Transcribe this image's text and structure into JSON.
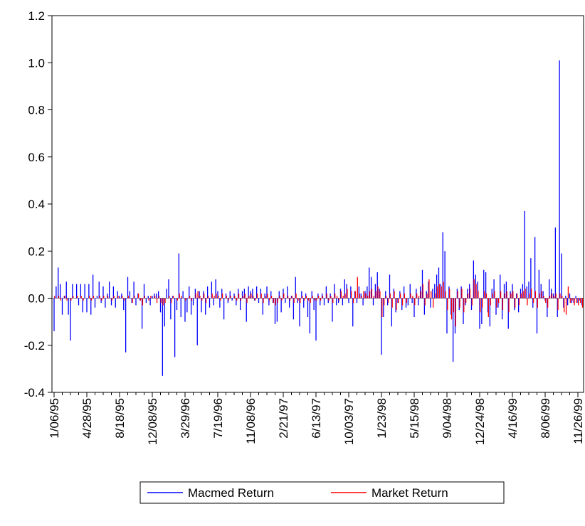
{
  "chart_data": {
    "type": "spike",
    "categories": [
      "1/06/95",
      null,
      null,
      null,
      null,
      null,
      null,
      null,
      null,
      null,
      null,
      null,
      null,
      null,
      null,
      null,
      "4/28/95",
      null,
      null,
      null,
      null,
      null,
      null,
      null,
      null,
      null,
      null,
      null,
      null,
      null,
      null,
      null,
      "8/18/95",
      null,
      null,
      null,
      null,
      null,
      null,
      null,
      null,
      null,
      null,
      null,
      null,
      null,
      null,
      null,
      "12/08/95",
      null,
      null,
      null,
      null,
      null,
      null,
      null,
      null,
      null,
      null,
      null,
      null,
      null,
      null,
      null,
      "3/29/96",
      null,
      null,
      null,
      null,
      null,
      null,
      null,
      null,
      null,
      null,
      null,
      null,
      null,
      null,
      null,
      "7/19/96",
      null,
      null,
      null,
      null,
      null,
      null,
      null,
      null,
      null,
      null,
      null,
      null,
      null,
      null,
      null,
      "11/08/96",
      null,
      null,
      null,
      null,
      null,
      null,
      null,
      null,
      null,
      null,
      null,
      null,
      null,
      null,
      null,
      "2/21/97",
      null,
      null,
      null,
      null,
      null,
      null,
      null,
      null,
      null,
      null,
      null,
      null,
      null,
      null,
      null,
      "6/13/97",
      null,
      null,
      null,
      null,
      null,
      null,
      null,
      null,
      null,
      null,
      null,
      null,
      null,
      null,
      null,
      "10/03/97",
      null,
      null,
      null,
      null,
      null,
      null,
      null,
      null,
      null,
      null,
      null,
      null,
      null,
      null,
      null,
      "1/23/98",
      null,
      null,
      null,
      null,
      null,
      null,
      null,
      null,
      null,
      null,
      null,
      null,
      null,
      null,
      null,
      "5/15/98",
      null,
      null,
      null,
      null,
      null,
      null,
      null,
      null,
      null,
      null,
      null,
      null,
      null,
      null,
      null,
      "9/04/98",
      null,
      null,
      null,
      null,
      null,
      null,
      null,
      null,
      null,
      null,
      null,
      null,
      null,
      null,
      null,
      "12/24/98",
      null,
      null,
      null,
      null,
      null,
      null,
      null,
      null,
      null,
      null,
      null,
      null,
      null,
      null,
      null,
      "4/16/99",
      null,
      null,
      null,
      null,
      null,
      null,
      null,
      null,
      null,
      null,
      null,
      null,
      null,
      null,
      null,
      "8/06/99",
      null,
      null,
      null,
      null,
      null,
      null,
      null,
      null,
      null,
      null,
      null,
      null,
      null,
      null,
      null,
      "11/26/99",
      null,
      null
    ],
    "series": [
      {
        "name": "Macmed Return",
        "color": "#0000ff",
        "values": [
          -0.14,
          0.05,
          0.13,
          0.06,
          -0.07,
          0.01,
          0.07,
          -0.07,
          -0.18,
          0.06,
          0.0,
          0.06,
          -0.03,
          0.06,
          -0.06,
          0.06,
          -0.06,
          0.06,
          -0.07,
          0.1,
          -0.04,
          0.01,
          0.07,
          -0.02,
          0.05,
          -0.04,
          0.02,
          0.07,
          -0.03,
          0.05,
          -0.04,
          0.03,
          0.01,
          0.02,
          -0.05,
          -0.23,
          0.09,
          0.03,
          -0.02,
          0.07,
          -0.03,
          0.02,
          -0.01,
          -0.13,
          0.06,
          -0.02,
          0.01,
          -0.03,
          0.01,
          0.02,
          0.02,
          0.03,
          -0.06,
          -0.33,
          -0.12,
          0.04,
          0.08,
          -0.09,
          0.01,
          -0.25,
          -0.05,
          0.19,
          -0.08,
          0.03,
          -0.1,
          -0.06,
          0.05,
          -0.07,
          -0.03,
          0.04,
          -0.2,
          0.03,
          -0.06,
          0.03,
          -0.07,
          0.05,
          -0.04,
          0.07,
          -0.03,
          0.08,
          0.03,
          -0.04,
          0.04,
          -0.09,
          0.02,
          -0.02,
          0.03,
          -0.01,
          0.02,
          -0.03,
          0.04,
          -0.05,
          0.03,
          0.04,
          -0.1,
          0.05,
          0.03,
          0.04,
          -0.01,
          0.05,
          -0.02,
          0.04,
          -0.07,
          0.02,
          0.05,
          -0.03,
          0.03,
          -0.02,
          -0.11,
          -0.1,
          0.03,
          -0.06,
          0.04,
          -0.02,
          0.05,
          -0.04,
          0.01,
          -0.09,
          0.09,
          -0.02,
          -0.12,
          0.03,
          -0.04,
          0.02,
          -0.08,
          -0.15,
          0.03,
          -0.05,
          -0.18,
          0.02,
          -0.03,
          0.02,
          -0.03,
          0.05,
          -0.02,
          0.02,
          -0.1,
          0.06,
          -0.03,
          -0.02,
          0.04,
          -0.03,
          0.08,
          0.06,
          -0.02,
          0.05,
          -0.12,
          0.03,
          -0.02,
          0.05,
          0.02,
          -0.03,
          0.03,
          0.05,
          0.13,
          0.09,
          -0.03,
          0.06,
          0.11,
          0.04,
          -0.24,
          -0.08,
          0.03,
          -0.03,
          0.1,
          -0.12,
          0.04,
          -0.06,
          -0.02,
          0.03,
          -0.05,
          0.05,
          -0.04,
          -0.03,
          0.06,
          -0.02,
          -0.08,
          0.04,
          -0.03,
          0.05,
          0.12,
          -0.07,
          0.03,
          0.07,
          -0.04,
          0.04,
          0.06,
          0.1,
          0.13,
          0.06,
          0.28,
          0.2,
          -0.15,
          0.05,
          -0.07,
          -0.27,
          -0.15,
          0.04,
          -0.05,
          0.05,
          -0.11,
          -0.03,
          0.04,
          0.06,
          -0.05,
          0.16,
          0.1,
          0.07,
          -0.13,
          -0.11,
          0.12,
          0.11,
          -0.06,
          -0.12,
          0.04,
          0.08,
          -0.07,
          -0.04,
          0.1,
          -0.09,
          0.06,
          0.07,
          -0.13,
          0.03,
          0.06,
          -0.05,
          0.02,
          -0.06,
          0.04,
          0.06,
          0.37,
          0.05,
          0.07,
          0.17,
          -0.04,
          0.26,
          -0.15,
          0.12,
          0.06,
          0.03,
          -0.01,
          -0.08,
          0.08,
          0.04,
          0.02,
          0.3,
          -0.08,
          1.01,
          0.19,
          -0.04,
          0.01,
          -0.03,
          0.02,
          -0.02,
          -0.02,
          0.01,
          -0.02,
          -0.01,
          -0.03
        ]
      },
      {
        "name": "Market Return",
        "color": "#ff0000",
        "values": [
          0.01,
          0.0,
          0.01,
          -0.01,
          0.0,
          0.01,
          -0.01,
          0.0,
          -0.01,
          0.01,
          0.0,
          0.01,
          0.0,
          0.01,
          -0.01,
          0.0,
          0.0,
          0.01,
          -0.01,
          0.01,
          0.0,
          0.0,
          0.01,
          -0.01,
          0.01,
          0.0,
          0.01,
          0.0,
          -0.01,
          0.01,
          0.0,
          0.01,
          0.0,
          0.01,
          -0.01,
          0.0,
          0.01,
          0.0,
          -0.02,
          0.01,
          0.0,
          0.02,
          -0.01,
          -0.03,
          0.01,
          0.0,
          -0.01,
          0.01,
          0.0,
          0.01,
          -0.02,
          0.01,
          -0.02,
          -0.03,
          -0.02,
          0.0,
          0.01,
          -0.02,
          0.01,
          0.0,
          -0.01,
          0.02,
          0.01,
          0.0,
          -0.01,
          0.0,
          0.01,
          -0.01,
          0.0,
          0.02,
          0.03,
          0.01,
          -0.01,
          0.02,
          -0.02,
          0.01,
          0.0,
          0.02,
          0.01,
          0.02,
          0.01,
          -0.01,
          0.02,
          0.0,
          0.01,
          -0.01,
          0.01,
          0.0,
          0.01,
          -0.01,
          0.02,
          -0.01,
          0.01,
          0.02,
          -0.02,
          0.01,
          0.02,
          0.01,
          -0.01,
          0.02,
          0.0,
          0.02,
          -0.02,
          0.01,
          0.02,
          -0.01,
          0.01,
          -0.02,
          -0.03,
          -0.02,
          0.01,
          -0.01,
          0.02,
          0.0,
          0.01,
          -0.01,
          0.01,
          -0.02,
          0.02,
          -0.01,
          -0.02,
          0.01,
          -0.01,
          0.01,
          -0.01,
          -0.02,
          0.01,
          -0.01,
          -0.01,
          0.01,
          -0.01,
          0.01,
          0.0,
          0.02,
          -0.01,
          0.01,
          -0.02,
          0.02,
          0.01,
          -0.01,
          0.03,
          0.01,
          0.02,
          0.04,
          0.0,
          0.03,
          -0.02,
          0.03,
          0.09,
          0.02,
          0.01,
          0.03,
          0.02,
          0.01,
          0.03,
          0.04,
          0.01,
          0.03,
          0.05,
          0.03,
          -0.08,
          -0.03,
          0.01,
          -0.02,
          0.02,
          -0.04,
          0.03,
          -0.05,
          -0.02,
          0.02,
          -0.03,
          0.02,
          -0.02,
          0.0,
          0.02,
          0.01,
          -0.03,
          0.02,
          0.01,
          0.03,
          0.06,
          -0.03,
          0.02,
          0.08,
          0.03,
          -0.04,
          0.02,
          0.05,
          0.06,
          0.05,
          0.07,
          0.03,
          -0.05,
          0.04,
          -0.09,
          -0.06,
          -0.12,
          0.03,
          -0.04,
          0.04,
          -0.06,
          -0.02,
          0.02,
          0.04,
          -0.03,
          0.08,
          0.06,
          0.03,
          -0.06,
          -0.04,
          0.03,
          0.02,
          -0.08,
          -0.03,
          0.02,
          0.03,
          -0.04,
          -0.02,
          0.03,
          -0.05,
          0.02,
          0.03,
          -0.06,
          0.02,
          0.03,
          -0.04,
          0.02,
          -0.03,
          0.02,
          0.03,
          0.04,
          -0.03,
          0.02,
          0.04,
          -0.02,
          0.03,
          -0.04,
          0.02,
          0.03,
          0.01,
          -0.02,
          -0.04,
          0.01,
          0.02,
          0.01,
          0.02,
          -0.05,
          0.02,
          0.01,
          -0.06,
          -0.07,
          0.05,
          -0.02,
          -0.01,
          -0.03,
          -0.02,
          -0.03,
          -0.02,
          -0.04
        ]
      }
    ],
    "ylim": [
      -0.4,
      1.2
    ],
    "yticks": [
      -0.4,
      -0.2,
      {
        "value": 0,
        "label": "0.0"
      },
      0.2,
      0.4,
      0.6,
      0.8,
      {
        "value": 1,
        "label": "1.0"
      },
      1.2
    ],
    "zero_line": true
  }
}
